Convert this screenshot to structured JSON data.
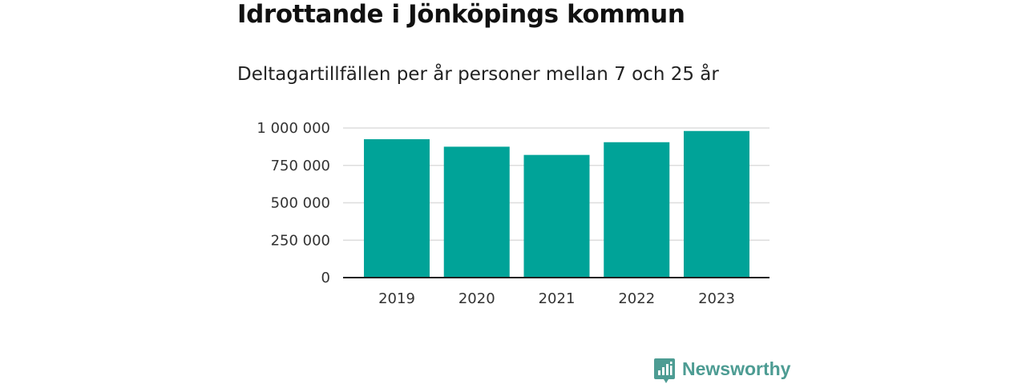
{
  "chart_data": {
    "type": "bar",
    "title": "Idrottande i Jönköpings kommun",
    "subtitle": "Deltagartillfällen per år personer mellan 7 och 25 år",
    "xlabel": "",
    "ylabel": "",
    "categories": [
      "2019",
      "2020",
      "2021",
      "2022",
      "2023"
    ],
    "values": [
      925000,
      875000,
      820000,
      905000,
      980000
    ],
    "ylim": [
      0,
      1000000
    ],
    "yticks": [
      0,
      250000,
      500000,
      750000,
      1000000
    ],
    "ytick_labels": [
      "0",
      "250 000",
      "500 000",
      "750 000",
      "1 000 000"
    ],
    "grid": true,
    "legend": "none",
    "bar_color": "#00a398",
    "grid_color": "#dddddd",
    "axis_color": "#222222"
  },
  "brand": {
    "name": "Newsworthy",
    "color": "#4d9c93",
    "icon": "bar-chart-speech-bubble-icon"
  }
}
